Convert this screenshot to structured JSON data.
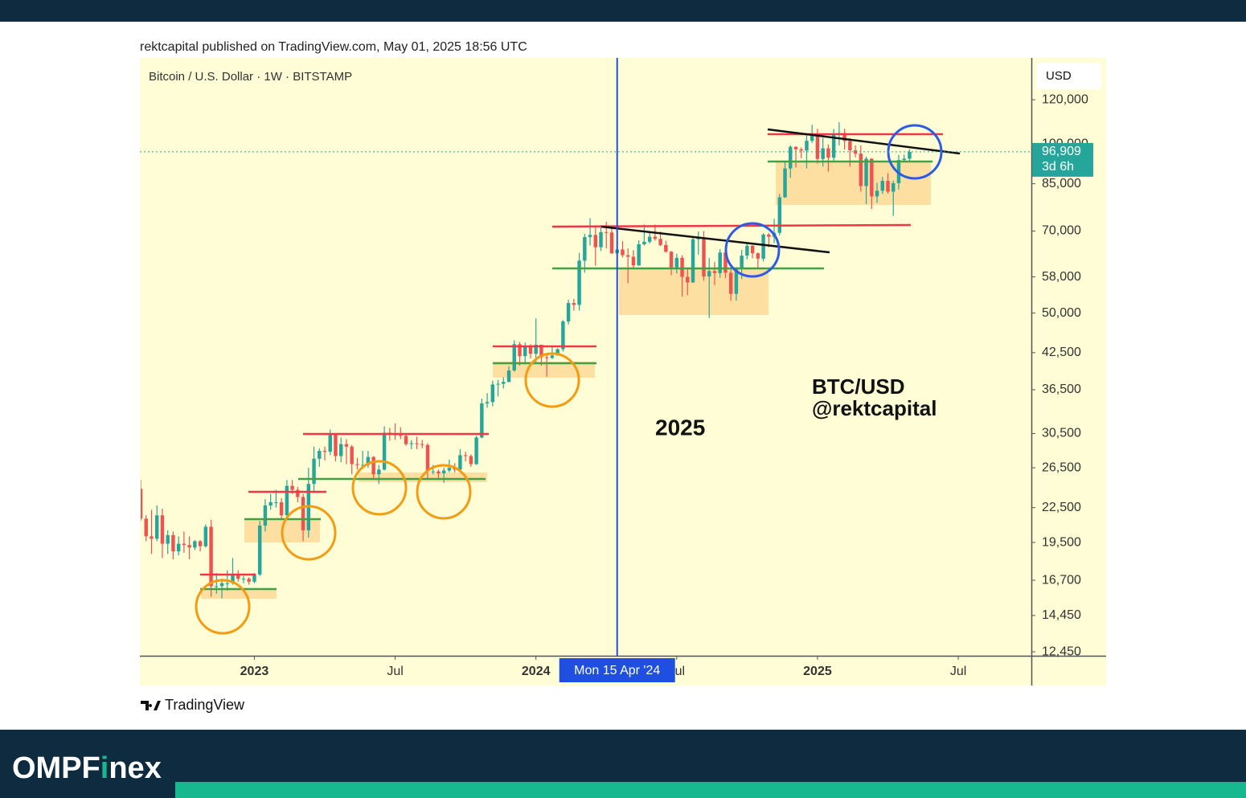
{
  "header": {
    "published": "rektcapital published on TradingView.com, May 01, 2025 18:56 UTC"
  },
  "chart_data": {
    "type": "candlestick",
    "title": "Bitcoin / U.S. Dollar · 1W · BITSTAMP",
    "currency": "USD",
    "up_color": "#26a69a",
    "down_color": "#ef5350",
    "log_scale": true,
    "ylim": [
      12250,
      142500
    ],
    "yticks": [
      {
        "value": 120000,
        "label": "120,000"
      },
      {
        "value": 100000,
        "label": "100,000"
      },
      {
        "value": 85000,
        "label": "85,000"
      },
      {
        "value": 70000,
        "label": "70,000"
      },
      {
        "value": 58000,
        "label": "58,000"
      },
      {
        "value": 50000,
        "label": "50,000"
      },
      {
        "value": 42500,
        "label": "42,500"
      },
      {
        "value": 36500,
        "label": "36,500"
      },
      {
        "value": 30500,
        "label": "30,500"
      },
      {
        "value": 26500,
        "label": "26,500"
      },
      {
        "value": 22500,
        "label": "22,500"
      },
      {
        "value": 19500,
        "label": "19,500"
      },
      {
        "value": 16700,
        "label": "16,700"
      },
      {
        "value": 14450,
        "label": "14,450"
      },
      {
        "value": 12450,
        "label": "12,450"
      }
    ],
    "xlim": [
      0,
      164.5
    ],
    "xticks": [
      {
        "value": 21,
        "label": "2023"
      },
      {
        "value": 47,
        "label": "Jul"
      },
      {
        "value": 73,
        "label": "2024"
      },
      {
        "value": 99,
        "label": "Jul"
      },
      {
        "value": 125,
        "label": "2025"
      },
      {
        "value": 151,
        "label": "Jul"
      }
    ],
    "crosshair": {
      "value": 88,
      "label": "Mon 15 Apr '24"
    },
    "last_price": {
      "value": 96909,
      "label": "96,909"
    },
    "countdown": "3d 6h",
    "annotations": [
      "2025",
      "BTC/USD",
      "@rektcapital"
    ],
    "ohlc": [
      [
        24300,
        25200,
        21300,
        21500
      ],
      [
        21500,
        21800,
        19600,
        20000
      ],
      [
        20000,
        22300,
        18600,
        19800
      ],
      [
        19800,
        22700,
        19600,
        21800
      ],
      [
        21800,
        22400,
        18300,
        19400
      ],
      [
        19400,
        20500,
        18600,
        20100
      ],
      [
        20100,
        20400,
        18200,
        18800
      ],
      [
        18800,
        20000,
        18500,
        19400
      ],
      [
        19400,
        20400,
        18700,
        19300
      ],
      [
        19300,
        20000,
        18200,
        19100
      ],
      [
        19100,
        19700,
        18900,
        19600
      ],
      [
        19600,
        19700,
        18800,
        19200
      ],
      [
        19200,
        21000,
        19100,
        20800
      ],
      [
        20800,
        21400,
        15600,
        16300
      ],
      [
        16300,
        17200,
        15800,
        16300
      ],
      [
        16300,
        16800,
        15500,
        16500
      ],
      [
        16500,
        17400,
        16000,
        16500
      ],
      [
        16500,
        18300,
        16400,
        17100
      ],
      [
        17100,
        17400,
        16600,
        16800
      ],
      [
        16800,
        17000,
        16500,
        16800
      ],
      [
        16800,
        16900,
        16400,
        16600
      ],
      [
        16600,
        17200,
        16500,
        17100
      ],
      [
        17100,
        21300,
        17000,
        20900
      ],
      [
        20900,
        23300,
        20400,
        22700
      ],
      [
        22700,
        23800,
        22300,
        23000
      ],
      [
        23000,
        24200,
        22500,
        23000
      ],
      [
        23000,
        23400,
        21400,
        21800
      ],
      [
        21800,
        25200,
        21400,
        24600
      ],
      [
        24600,
        25200,
        23800,
        24200
      ],
      [
        24200,
        24500,
        23000,
        23500
      ],
      [
        23500,
        23800,
        19600,
        20500
      ],
      [
        20500,
        26500,
        19900,
        24800
      ],
      [
        24800,
        28900,
        24000,
        27500
      ],
      [
        27500,
        28700,
        26600,
        28400
      ],
      [
        28400,
        28900,
        27300,
        28300
      ],
      [
        28300,
        31000,
        27900,
        30500
      ],
      [
        30500,
        30500,
        27200,
        27800
      ],
      [
        27800,
        30000,
        27100,
        29200
      ],
      [
        29200,
        29800,
        26900,
        28900
      ],
      [
        28900,
        29100,
        25800,
        26900
      ],
      [
        26900,
        27600,
        26300,
        26800
      ],
      [
        26800,
        28400,
        26500,
        26800
      ],
      [
        26800,
        28400,
        26500,
        27700
      ],
      [
        27700,
        27800,
        25400,
        25800
      ],
      [
        25800,
        26800,
        24800,
        26300
      ],
      [
        26300,
        31400,
        26200,
        30600
      ],
      [
        30600,
        31200,
        29600,
        30500
      ],
      [
        30500,
        31800,
        29700,
        30300
      ],
      [
        30300,
        31300,
        29800,
        30200
      ],
      [
        30200,
        30400,
        29000,
        29200
      ],
      [
        29200,
        29700,
        28600,
        29300
      ],
      [
        29300,
        30100,
        28600,
        29200
      ],
      [
        29200,
        29700,
        28700,
        29100
      ],
      [
        29100,
        29300,
        25200,
        26100
      ],
      [
        26100,
        26800,
        25800,
        26100
      ],
      [
        26100,
        26300,
        25400,
        25900
      ],
      [
        25900,
        26500,
        24900,
        26200
      ],
      [
        26200,
        27400,
        26000,
        26500
      ],
      [
        26500,
        27000,
        26000,
        26300
      ],
      [
        26300,
        28600,
        26000,
        27900
      ],
      [
        27900,
        28300,
        27200,
        27800
      ],
      [
        27800,
        28000,
        26600,
        26900
      ],
      [
        26900,
        30200,
        26800,
        30000
      ],
      [
        30000,
        35200,
        29900,
        34500
      ],
      [
        34500,
        36000,
        33900,
        34700
      ],
      [
        34700,
        37900,
        34100,
        37300
      ],
      [
        37300,
        38000,
        35500,
        37400
      ],
      [
        37400,
        38400,
        36700,
        37700
      ],
      [
        37700,
        40200,
        37600,
        39500
      ],
      [
        39500,
        44700,
        39300,
        44000
      ],
      [
        44000,
        44400,
        40300,
        41900
      ],
      [
        41900,
        44300,
        40500,
        43700
      ],
      [
        43700,
        44000,
        41500,
        42300
      ],
      [
        42300,
        48900,
        40800,
        43900
      ],
      [
        43900,
        43900,
        40300,
        41700
      ],
      [
        41700,
        42300,
        38500,
        41600
      ],
      [
        41600,
        43800,
        41400,
        42000
      ],
      [
        42000,
        43300,
        42000,
        43100
      ],
      [
        43100,
        48600,
        42700,
        48300
      ],
      [
        48300,
        52800,
        47700,
        52100
      ],
      [
        52100,
        53000,
        50500,
        51700
      ],
      [
        51700,
        64000,
        50500,
        62000
      ],
      [
        62000,
        69200,
        59000,
        68300
      ],
      [
        68300,
        73800,
        66000,
        68900
      ],
      [
        68900,
        71600,
        60700,
        65500
      ],
      [
        65500,
        71700,
        64500,
        69700
      ],
      [
        69700,
        72700,
        65200,
        69600
      ],
      [
        69600,
        71300,
        63700,
        63900
      ],
      [
        63900,
        67200,
        59600,
        64900
      ],
      [
        64900,
        67200,
        62800,
        63400
      ],
      [
        63400,
        65200,
        56500,
        63000
      ],
      [
        63000,
        64700,
        60200,
        60800
      ],
      [
        60800,
        67400,
        60700,
        66300
      ],
      [
        66300,
        71900,
        66000,
        67000
      ],
      [
        67000,
        70000,
        66500,
        68400
      ],
      [
        68400,
        71900,
        67300,
        67800
      ],
      [
        67800,
        69900,
        65800,
        66100
      ],
      [
        66100,
        67300,
        64100,
        64300
      ],
      [
        64300,
        64500,
        58400,
        60300
      ],
      [
        60300,
        63800,
        58800,
        62700
      ],
      [
        62700,
        63400,
        53500,
        58000
      ],
      [
        58000,
        60000,
        53800,
        56700
      ],
      [
        56700,
        68400,
        56600,
        67700
      ],
      [
        67700,
        69900,
        63500,
        68200
      ],
      [
        68200,
        70000,
        57100,
        58100
      ],
      [
        58100,
        62700,
        49000,
        59400
      ],
      [
        59400,
        61700,
        56100,
        58900
      ],
      [
        58900,
        65000,
        57800,
        64100
      ],
      [
        64100,
        64900,
        57700,
        59000
      ],
      [
        59000,
        59800,
        52600,
        54100
      ],
      [
        54100,
        60400,
        52600,
        60000
      ],
      [
        60000,
        64800,
        57500,
        63300
      ],
      [
        63300,
        66500,
        62300,
        65900
      ],
      [
        65900,
        66100,
        62600,
        63900
      ],
      [
        63900,
        64100,
        59900,
        62500
      ],
      [
        62500,
        69400,
        61800,
        69000
      ],
      [
        69000,
        69500,
        65500,
        68400
      ],
      [
        68400,
        73600,
        66600,
        69500
      ],
      [
        69500,
        81500,
        68800,
        80400
      ],
      [
        80400,
        93400,
        80200,
        90500
      ],
      [
        90500,
        99500,
        87100,
        98900
      ],
      [
        98900,
        99100,
        90800,
        97900
      ],
      [
        97900,
        98700,
        94400,
        97400
      ],
      [
        97400,
        104000,
        90500,
        101400
      ],
      [
        101400,
        108300,
        100500,
        104500
      ],
      [
        104500,
        106500,
        92300,
        94100
      ],
      [
        94100,
        102700,
        91200,
        98300
      ],
      [
        98300,
        99900,
        89300,
        94600
      ],
      [
        94600,
        106400,
        92800,
        104500
      ],
      [
        104500,
        109400,
        99500,
        104700
      ],
      [
        104700,
        106500,
        97800,
        101300
      ],
      [
        101300,
        102500,
        91200,
        97500
      ],
      [
        97500,
        99500,
        94800,
        96200
      ],
      [
        96200,
        99500,
        82300,
        84200
      ],
      [
        84200,
        95000,
        78200,
        94200
      ],
      [
        94200,
        94400,
        76600,
        80700
      ],
      [
        80700,
        85300,
        78600,
        82600
      ],
      [
        82600,
        87400,
        81500,
        86000
      ],
      [
        86000,
        88800,
        81600,
        82300
      ],
      [
        82300,
        86100,
        74500,
        85200
      ],
      [
        85200,
        95700,
        83000,
        93700
      ],
      [
        93700,
        95800,
        92800,
        94200
      ],
      [
        94200,
        97900,
        93300,
        96909
      ]
    ]
  },
  "footer": {
    "tv_brand": "TradingView",
    "brand_left": "OMPF",
    "brand_i": "i",
    "brand_right": "nex"
  }
}
